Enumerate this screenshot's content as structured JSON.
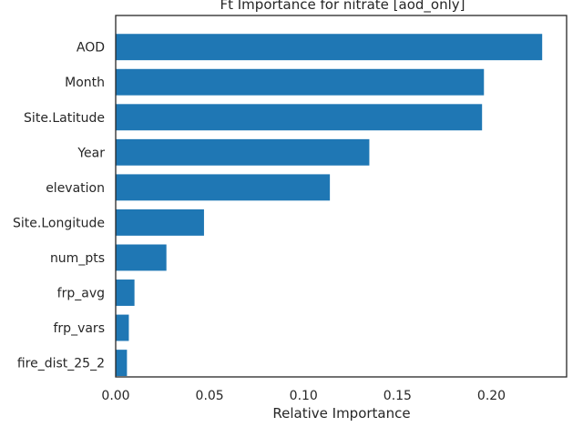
{
  "chart_data": {
    "type": "bar",
    "orientation": "horizontal",
    "title": "Ft Importance for nitrate [aod_only]",
    "xlabel": "Relative Importance",
    "ylabel": "",
    "xlim": [
      0.0,
      0.24
    ],
    "xticks": [
      "0.00",
      "0.05",
      "0.10",
      "0.15",
      "0.20"
    ],
    "categories": [
      "AOD",
      "Month",
      "Site.Latitude",
      "Year",
      "elevation",
      "Site.Longitude",
      "num_pts",
      "frp_avg",
      "frp_vars",
      "fire_dist_25_2"
    ],
    "values": [
      0.227,
      0.196,
      0.195,
      0.135,
      0.114,
      0.047,
      0.027,
      0.01,
      0.007,
      0.006
    ],
    "bar_color": "#1f77b4",
    "grid": false,
    "legend": "none"
  }
}
